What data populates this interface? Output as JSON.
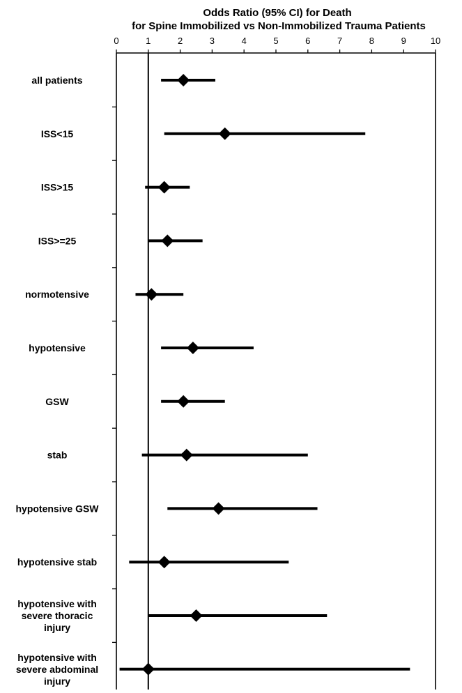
{
  "chart_data": {
    "type": "forest",
    "title_lines": [
      "Odds Ratio (95% CI) for Death",
      "for Spine Immobilized vs Non-Immobilized Trauma Patients"
    ],
    "xlabel": "",
    "ylabel": "",
    "xlim": [
      0,
      10
    ],
    "x_ticks": [
      "0",
      "1",
      "2",
      "3",
      "4",
      "5",
      "6",
      "7",
      "8",
      "9",
      "10"
    ],
    "reference_line": 1,
    "grid": false,
    "legend": "none",
    "line_color": "#000000",
    "marker_color": "#000000",
    "marker_shape": "diamond",
    "rows": [
      {
        "label": [
          "all patients"
        ],
        "or": 2.1,
        "lower": 1.4,
        "upper": 3.1
      },
      {
        "label": [
          "ISS<15"
        ],
        "or": 3.4,
        "lower": 1.5,
        "upper": 7.8
      },
      {
        "label": [
          "ISS>15"
        ],
        "or": 1.5,
        "lower": 0.9,
        "upper": 2.3
      },
      {
        "label": [
          "ISS>=25"
        ],
        "or": 1.6,
        "lower": 1.0,
        "upper": 2.7
      },
      {
        "label": [
          "normotensive"
        ],
        "or": 1.1,
        "lower": 0.6,
        "upper": 2.1
      },
      {
        "label": [
          "hypotensive"
        ],
        "or": 2.4,
        "lower": 1.4,
        "upper": 4.3
      },
      {
        "label": [
          "GSW"
        ],
        "or": 2.1,
        "lower": 1.4,
        "upper": 3.4
      },
      {
        "label": [
          "stab"
        ],
        "or": 2.2,
        "lower": 0.8,
        "upper": 6.0
      },
      {
        "label": [
          "hypotensive GSW"
        ],
        "or": 3.2,
        "lower": 1.6,
        "upper": 6.3
      },
      {
        "label": [
          "hypotensive stab"
        ],
        "or": 1.5,
        "lower": 0.4,
        "upper": 5.4
      },
      {
        "label": [
          "hypotensive with",
          "severe thoracic",
          "injury"
        ],
        "or": 2.5,
        "lower": 1.0,
        "upper": 6.6
      },
      {
        "label": [
          "hypotensive with",
          "severe abdominal",
          "injury"
        ],
        "or": 1.0,
        "lower": 0.1,
        "upper": 9.2
      }
    ]
  }
}
